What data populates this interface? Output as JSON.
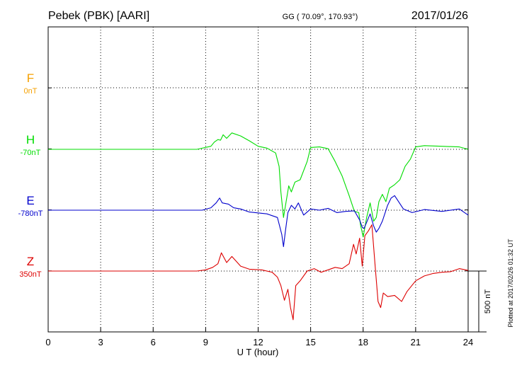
{
  "header": {
    "station": "Pebek (PBK)  [AARI]",
    "coords": "GG ( 70.09°, 170.93°)",
    "date": "2017/01/26"
  },
  "footer": {
    "plotted": "Plotted at 2017/02/26 01:32 UT"
  },
  "scale_bar": {
    "label": "500 nT",
    "value_nT": 500
  },
  "colors": {
    "F": "#f5a000",
    "H": "#00dd00",
    "E": "#0000cc",
    "Z": "#dd0000"
  },
  "chart_data": {
    "type": "line",
    "xlabel": "U T (hour)",
    "xlim": [
      0,
      24
    ],
    "xticks": [
      "0",
      "3",
      "6",
      "9",
      "12",
      "15",
      "18",
      "21",
      "24"
    ],
    "y_units": "nT offset from baseline",
    "series": [
      {
        "name": "F",
        "baseline_label": "0nT",
        "color": "#f5a000",
        "x": [],
        "y": []
      },
      {
        "name": "H",
        "baseline_label": "-70nT",
        "color": "#00dd00",
        "x": [
          0,
          8.5,
          9.3,
          9.5,
          9.7,
          9.85,
          10.0,
          10.2,
          10.5,
          11.0,
          11.5,
          12.0,
          12.5,
          13.0,
          13.2,
          13.3,
          13.45,
          13.6,
          13.75,
          13.9,
          14.1,
          14.4,
          14.8,
          15.0,
          15.5,
          16.0,
          16.4,
          16.8,
          17.2,
          17.5,
          17.75,
          17.85,
          18.0,
          18.2,
          18.4,
          18.6,
          18.75,
          18.9,
          19.1,
          19.3,
          19.5,
          19.8,
          20.1,
          20.4,
          20.7,
          21.0,
          21.5,
          22.5,
          23.5,
          24.0
        ],
        "y": [
          0,
          0,
          25,
          60,
          80,
          75,
          120,
          90,
          135,
          110,
          70,
          25,
          10,
          -30,
          -140,
          -350,
          -560,
          -430,
          -300,
          -350,
          -270,
          -250,
          -100,
          15,
          20,
          5,
          -100,
          -220,
          -380,
          -510,
          -520,
          -620,
          -720,
          -560,
          -440,
          -590,
          -560,
          -430,
          -370,
          -430,
          -320,
          -290,
          -250,
          -140,
          -80,
          20,
          30,
          25,
          20,
          0
        ]
      },
      {
        "name": "E",
        "baseline_label": "-780nT",
        "color": "#0000cc",
        "x": [
          0,
          8.8,
          9.3,
          9.6,
          9.8,
          9.95,
          10.3,
          10.6,
          11.0,
          11.5,
          12.5,
          13.1,
          13.35,
          13.45,
          13.55,
          13.7,
          13.9,
          14.1,
          14.3,
          14.6,
          15.0,
          15.5,
          16.0,
          16.5,
          17.0,
          17.5,
          17.8,
          17.95,
          18.05,
          18.2,
          18.4,
          18.6,
          18.75,
          18.9,
          19.1,
          19.4,
          19.6,
          19.8,
          20.3,
          20.8,
          21.5,
          22.5,
          23.5,
          24.0
        ],
        "y": [
          0,
          0,
          20,
          60,
          100,
          60,
          50,
          20,
          10,
          -15,
          -30,
          -60,
          -200,
          -300,
          -180,
          -20,
          40,
          10,
          60,
          -40,
          10,
          0,
          15,
          -20,
          -10,
          -5,
          -80,
          -140,
          -150,
          -100,
          -30,
          -130,
          -180,
          -150,
          -90,
          40,
          100,
          120,
          10,
          -20,
          5,
          -10,
          10,
          -40
        ]
      },
      {
        "name": "Z",
        "baseline_label": "350nT",
        "color": "#dd0000",
        "x": [
          0,
          8.5,
          9.0,
          9.4,
          9.7,
          9.9,
          10.2,
          10.5,
          11.0,
          11.5,
          12.2,
          12.8,
          13.1,
          13.3,
          13.5,
          13.7,
          13.85,
          14.0,
          14.15,
          14.4,
          14.8,
          15.2,
          15.6,
          16.0,
          16.4,
          16.8,
          17.2,
          17.45,
          17.6,
          17.8,
          17.95,
          18.1,
          18.3,
          18.5,
          18.7,
          18.85,
          19.0,
          19.15,
          19.4,
          19.8,
          20.2,
          20.5,
          21.0,
          21.5,
          22.0,
          22.5,
          23.0,
          23.5,
          24.0
        ],
        "y": [
          0,
          0,
          10,
          30,
          60,
          150,
          70,
          120,
          40,
          15,
          10,
          -10,
          -50,
          -120,
          -240,
          -150,
          -300,
          -400,
          -120,
          -80,
          0,
          20,
          -10,
          10,
          30,
          20,
          60,
          220,
          140,
          270,
          40,
          290,
          330,
          380,
          20,
          -250,
          -300,
          -180,
          -210,
          -200,
          -250,
          -170,
          -80,
          -40,
          -20,
          -10,
          -5,
          20,
          5
        ]
      }
    ]
  }
}
